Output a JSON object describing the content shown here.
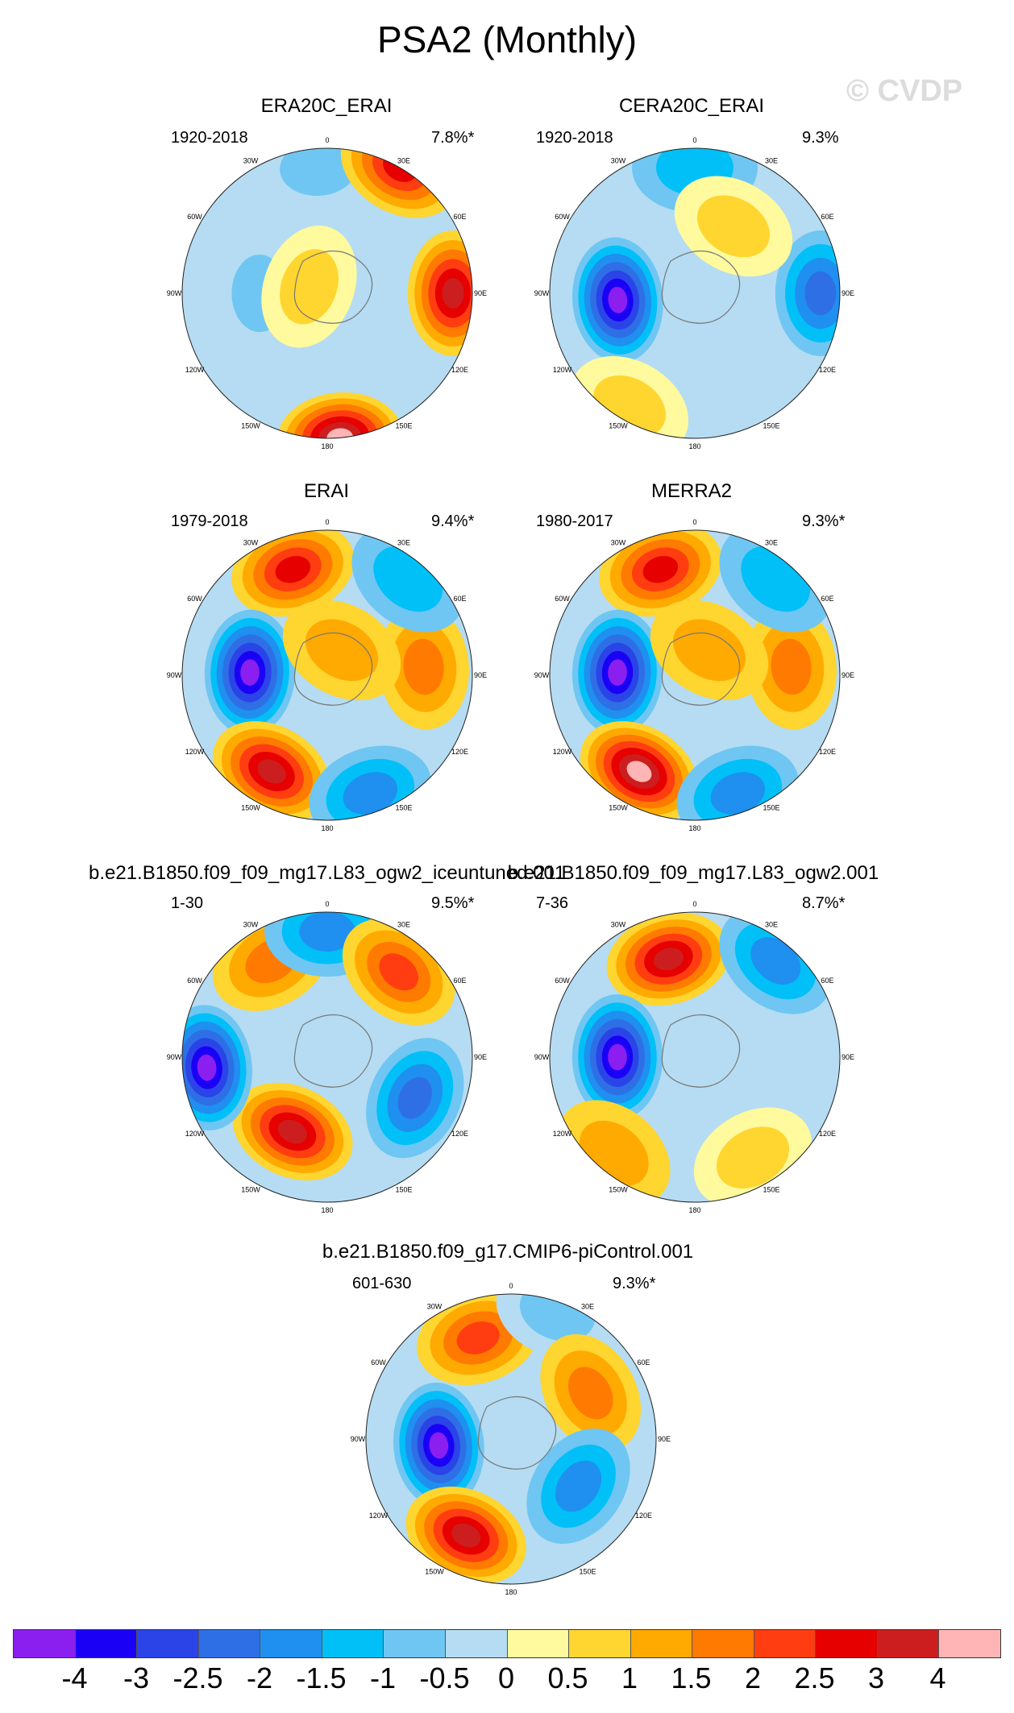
{
  "title": "PSA2 (Monthly)",
  "watermark": "© CVDP",
  "lon_labels": [
    "0",
    "30E",
    "60E",
    "90E",
    "120E",
    "150E",
    "180",
    "150W",
    "120W",
    "90W",
    "60W",
    "30W"
  ],
  "panels": [
    {
      "title": "ERA20C_ERAI",
      "period": "1920-2018",
      "pct": "7.8%*",
      "centers": [
        [
          -4,
          2.6,
          [
            -0.5,
            0
          ]
        ],
        [
          -90,
          1.4,
          [
            -0.5,
            0
          ]
        ],
        [
          90,
          2.6,
          [
            3,
            0.5
          ]
        ],
        [
          30,
          3.0,
          [
            2.5,
            0.5
          ]
        ],
        [
          175,
          3.0,
          [
            4,
            0.5
          ]
        ],
        [
          110,
          -0.4,
          [
            0.5,
            0
          ]
        ]
      ]
    },
    {
      "title": "CERA20C_ERAI",
      "period": "1920-2018",
      "pct": "9.3%",
      "centers": [
        [
          0,
          2.6,
          [
            -1,
            -0.5
          ]
        ],
        [
          90,
          2.6,
          [
            -2,
            -0.5
          ]
        ],
        [
          -95,
          1.6,
          [
            -4,
            -0.5
          ]
        ],
        [
          -150,
          2.7,
          [
            0.5,
            0
          ]
        ],
        [
          30,
          1.6,
          [
            0.5,
            0
          ]
        ]
      ]
    },
    {
      "title": "ERAI",
      "period": "1979-2018",
      "pct": "9.4%*",
      "centers": [
        [
          -18,
          2.3,
          [
            2.5,
            0.5
          ]
        ],
        [
          -88,
          1.6,
          [
            -4,
            -0.5
          ]
        ],
        [
          -150,
          2.3,
          [
            3,
            0.5
          ]
        ],
        [
          85,
          2.0,
          [
            1.5,
            0.5
          ]
        ],
        [
          160,
          2.6,
          [
            -1.5,
            -0.5
          ]
        ],
        [
          40,
          2.6,
          [
            -1,
            -0.5
          ]
        ],
        [
          30,
          0.6,
          [
            1,
            0.5
          ]
        ]
      ]
    },
    {
      "title": "MERRA2",
      "period": "1980-2017",
      "pct": "9.3%*",
      "centers": [
        [
          -18,
          2.3,
          [
            2.5,
            0.5
          ]
        ],
        [
          -88,
          1.6,
          [
            -4,
            -0.5
          ]
        ],
        [
          -150,
          2.3,
          [
            4,
            0.5
          ]
        ],
        [
          85,
          2.0,
          [
            1.5,
            0.5
          ]
        ],
        [
          160,
          2.6,
          [
            -1.5,
            -0.5
          ]
        ],
        [
          40,
          2.6,
          [
            -1,
            -0.5
          ]
        ],
        [
          30,
          0.6,
          [
            1,
            0.5
          ]
        ]
      ]
    },
    {
      "title": "b.e21.B1850.f09_f09_mg17.L83_ogw2_iceuntuned.001",
      "period": "1-30",
      "pct": "9.5%*",
      "centers": [
        [
          -30,
          2.3,
          [
            1.5,
            0.5
          ]
        ],
        [
          0,
          2.6,
          [
            -1.5,
            -0.5
          ]
        ],
        [
          40,
          2.3,
          [
            2,
            0.5
          ]
        ],
        [
          115,
          2.0,
          [
            -2,
            -0.5
          ]
        ],
        [
          -155,
          1.7,
          [
            3,
            0.5
          ]
        ],
        [
          -95,
          2.5,
          [
            -4,
            -0.5
          ]
        ]
      ]
    },
    {
      "title": "b.e21.B1850.f09_f09_mg17.L83_ogw2.001",
      "period": "7-36",
      "pct": "8.7%*",
      "centers": [
        [
          -15,
          2.1,
          [
            3,
            0.5
          ]
        ],
        [
          40,
          2.6,
          [
            -1.5,
            -0.5
          ]
        ],
        [
          -90,
          1.6,
          [
            -4,
            -0.5
          ]
        ],
        [
          -140,
          2.6,
          [
            1,
            0.5
          ]
        ],
        [
          150,
          2.4,
          [
            0.5,
            0
          ]
        ]
      ]
    },
    {
      "title": "b.e21.B1850.f09_g17.CMIP6-piControl.001",
      "period": "601-630",
      "pct": "9.3%*",
      "centers": [
        [
          -18,
          2.2,
          [
            2,
            0.5
          ]
        ],
        [
          20,
          2.8,
          [
            -0.5,
            0
          ]
        ],
        [
          60,
          1.9,
          [
            1.5,
            0.5
          ]
        ],
        [
          -95,
          1.5,
          [
            -4,
            -0.5
          ]
        ],
        [
          -155,
          2.2,
          [
            3,
            0.5
          ]
        ],
        [
          125,
          1.7,
          [
            -1.5,
            -0.5
          ]
        ]
      ]
    }
  ],
  "colorbar": {
    "colors": [
      "#8a1ff0",
      "#1a00f5",
      "#2a44e8",
      "#2e6fe6",
      "#1f8ff0",
      "#00c0f7",
      "#6fc6f2",
      "#b5dcf2",
      "#fffa9e",
      "#ffd530",
      "#ffaa00",
      "#ff7a00",
      "#ff3d10",
      "#e60000",
      "#cc1e1e",
      "#ffb5b5"
    ],
    "labels": [
      "-4",
      "-3",
      "-2.5",
      "-2",
      "-1.5",
      "-1",
      "-0.5",
      "0",
      "0.5",
      "1",
      "1.5",
      "2",
      "2.5",
      "3",
      "4"
    ]
  }
}
